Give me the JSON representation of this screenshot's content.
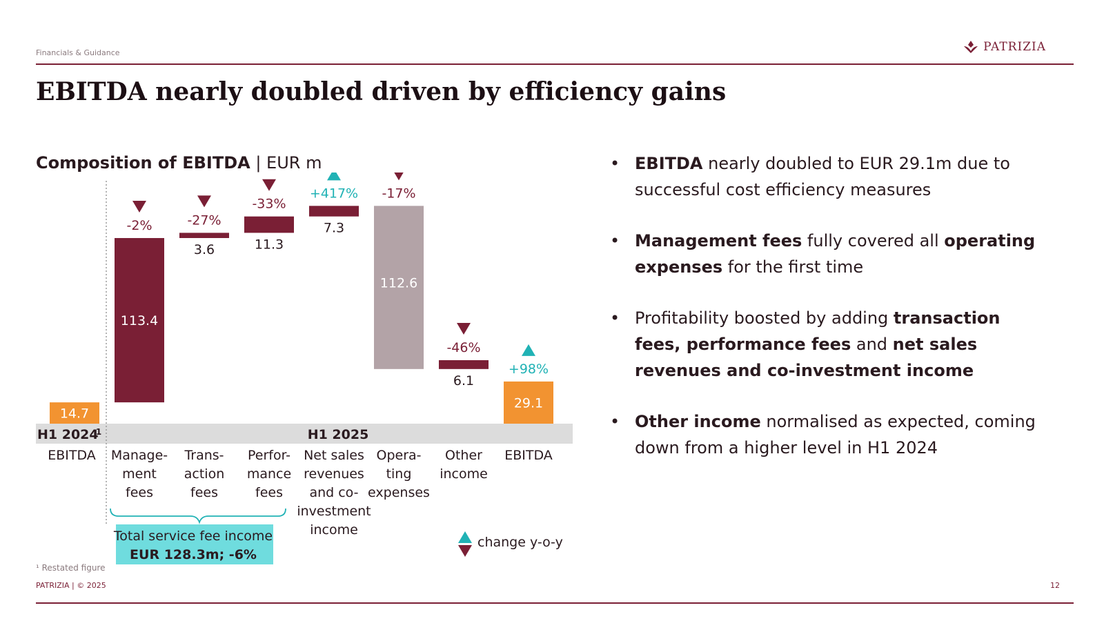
{
  "header": {
    "section": "Financials & Guidance",
    "logo_text": "PATRIZIA",
    "title": "EBITDA nearly doubled driven by efficiency gains"
  },
  "chart_header": {
    "bold": "Composition of EBITDA",
    "unit": " | EUR m"
  },
  "colors": {
    "maroon": "#7a1f35",
    "orange": "#f29331",
    "operating": "#b3a3a7",
    "teal": "#20b2b5",
    "band": "#dcdcdc",
    "brace_box": "#6fdcde"
  },
  "chart_data": {
    "type": "waterfall",
    "unit": "EUR m",
    "title": "Composition of EBITDA",
    "periods": [
      "H1 2024",
      "H1 2025"
    ],
    "period_superscript": "1",
    "steps": [
      {
        "category": "EBITDA",
        "label_lines": [
          "EBITDA"
        ],
        "value": 14.7,
        "kind": "total",
        "period": "H1 2024",
        "label": "14.7"
      },
      {
        "category": "Management fees",
        "label_lines": [
          "Manage-",
          "ment",
          "fees"
        ],
        "value": 113.4,
        "kind": "increase",
        "change": "-2%",
        "direction": "down",
        "label": "113.4"
      },
      {
        "category": "Transaction fees",
        "label_lines": [
          "Trans-",
          "action",
          "fees"
        ],
        "value": 3.6,
        "kind": "increase",
        "change": "-27%",
        "direction": "down",
        "label": "3.6"
      },
      {
        "category": "Performance fees",
        "label_lines": [
          "Perfor-",
          "mance",
          "fees"
        ],
        "value": 11.3,
        "kind": "increase",
        "change": "-33%",
        "direction": "down",
        "label": "11.3"
      },
      {
        "category": "Net sales revenues and co-investment income",
        "label_lines": [
          "Net sales",
          "revenues",
          "and co-",
          "investment",
          "income"
        ],
        "value": 7.3,
        "kind": "increase",
        "change": "+417%",
        "direction": "up",
        "label": "7.3"
      },
      {
        "category": "Operating expenses",
        "label_lines": [
          "Opera-",
          "ting",
          "expenses"
        ],
        "value": -112.6,
        "kind": "decrease",
        "change": "-17%",
        "direction": "down",
        "label": "112.6"
      },
      {
        "category": "Other income",
        "label_lines": [
          "Other",
          "income"
        ],
        "value": 6.1,
        "kind": "increase",
        "change": "-46%",
        "direction": "down",
        "label": "6.1"
      },
      {
        "category": "EBITDA",
        "label_lines": [
          "EBITDA"
        ],
        "value": 29.1,
        "kind": "total",
        "period": "H1 2025",
        "change": "+98%",
        "direction": "up",
        "label": "29.1"
      }
    ],
    "brace_box_lines": [
      "Total service fee income",
      "EUR 128.3m; -6%"
    ],
    "legend": "change y-o-y"
  },
  "bullets": [
    {
      "segments": [
        {
          "b": true,
          "t": "EBITDA"
        },
        {
          "b": false,
          "t": " nearly doubled to EUR 29.1m due to successful cost efficiency measures"
        }
      ]
    },
    {
      "segments": [
        {
          "b": true,
          "t": "Management fees"
        },
        {
          "b": false,
          "t": " fully covered all "
        },
        {
          "b": true,
          "t": "operating expenses"
        },
        {
          "b": false,
          "t": " for the first time"
        }
      ]
    },
    {
      "segments": [
        {
          "b": false,
          "t": "Profitability boosted by adding "
        },
        {
          "b": true,
          "t": "transaction fees, performance fees"
        },
        {
          "b": false,
          "t": " and "
        },
        {
          "b": true,
          "t": "net sales revenues and co-investment income"
        }
      ]
    },
    {
      "segments": [
        {
          "b": true,
          "t": "Other income"
        },
        {
          "b": false,
          "t": " normalised as expected, coming down from a higher level in H1 2024"
        }
      ]
    }
  ],
  "bullet_symbol": "•",
  "footnote": "¹ Restated figure",
  "footer": "PATRIZIA | © 2025",
  "page_number": "12"
}
